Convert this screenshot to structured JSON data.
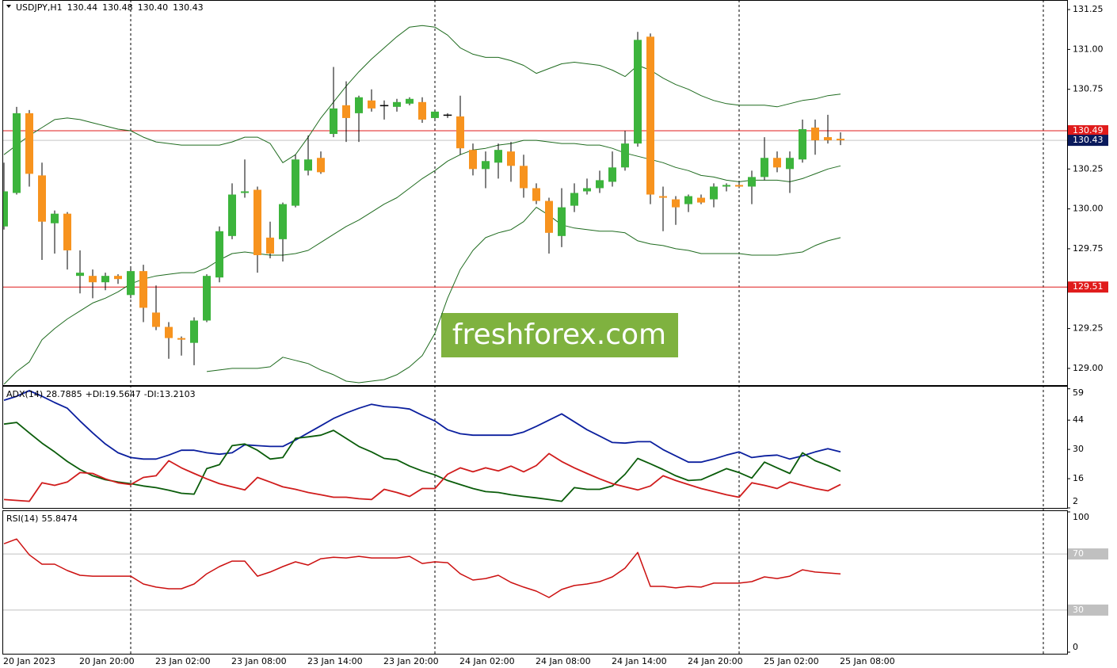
{
  "chart_data": [
    {
      "type": "candlestick",
      "title": "USDJPY,H1",
      "title_values": [
        "130.44",
        "130.48",
        "130.40",
        "130.43"
      ],
      "watermark": "freshforex.com",
      "categories": [
        "20 Jan 2023",
        null,
        null,
        null,
        null,
        null,
        "20 Jan 20:00",
        null,
        null,
        null,
        null,
        null,
        "23 Jan 02:00",
        null,
        null,
        null,
        null,
        null,
        "23 Jan 08:00",
        null,
        null,
        null,
        null,
        null,
        "23 Jan 14:00",
        null,
        null,
        null,
        null,
        null,
        "23 Jan 20:00",
        null,
        null,
        null,
        null,
        null,
        "24 Jan 02:00",
        null,
        null,
        null,
        null,
        null,
        "24 Jan 08:00",
        null,
        null,
        null,
        null,
        null,
        "24 Jan 14:00",
        null,
        null,
        null,
        null,
        null,
        "24 Jan 20:00",
        null,
        null,
        null,
        null,
        null,
        "25 Jan 02:00",
        null,
        null,
        null,
        null,
        null,
        "25 Jan 08:00"
      ],
      "open": [
        129.89,
        130.1,
        130.6,
        130.21,
        129.91,
        129.97,
        129.58,
        129.58,
        129.54,
        129.58,
        129.46,
        129.61,
        129.35,
        129.26,
        129.19,
        129.16,
        129.3,
        129.57,
        129.83,
        130.1,
        130.12,
        129.82,
        129.81,
        130.02,
        130.24,
        130.32,
        130.47,
        130.65,
        130.6,
        130.68,
        130.65,
        130.64,
        130.66,
        130.67,
        130.57,
        130.59,
        130.58,
        130.37,
        130.25,
        130.29,
        130.36,
        130.27,
        130.13,
        130.05,
        129.83,
        130.02,
        130.11,
        130.13,
        130.17,
        130.26,
        130.41,
        131.08,
        130.08,
        130.06,
        130.03,
        130.07,
        130.06,
        130.14,
        130.15,
        130.14,
        130.2,
        130.32,
        130.25,
        130.31,
        130.51,
        130.45,
        130.44
      ],
      "high": [
        130.29,
        130.64,
        130.62,
        130.29,
        129.99,
        129.98,
        129.74,
        129.62,
        129.6,
        129.59,
        129.64,
        129.65,
        129.52,
        129.29,
        129.2,
        129.32,
        129.59,
        129.89,
        130.16,
        130.31,
        130.14,
        129.92,
        130.04,
        130.34,
        130.46,
        130.36,
        130.89,
        130.8,
        130.71,
        130.75,
        130.68,
        130.69,
        130.7,
        130.7,
        130.61,
        130.6,
        130.71,
        130.41,
        130.36,
        130.41,
        130.42,
        130.34,
        130.16,
        130.07,
        130.13,
        130.16,
        130.19,
        130.24,
        130.36,
        130.49,
        131.11,
        131.1,
        130.14,
        130.08,
        130.09,
        130.09,
        130.16,
        130.16,
        130.17,
        130.24,
        130.45,
        130.36,
        130.36,
        130.56,
        130.56,
        130.59,
        130.48
      ],
      "low": [
        129.87,
        130.09,
        130.14,
        129.68,
        129.72,
        129.62,
        129.47,
        129.44,
        129.49,
        129.53,
        129.44,
        129.29,
        129.24,
        129.06,
        129.08,
        129.02,
        129.29,
        129.54,
        129.81,
        130.07,
        129.6,
        129.69,
        129.67,
        130.01,
        130.21,
        130.22,
        130.45,
        130.42,
        130.42,
        130.61,
        130.56,
        130.61,
        130.65,
        130.54,
        130.56,
        130.57,
        130.34,
        130.21,
        130.13,
        130.19,
        130.17,
        130.07,
        130.03,
        129.72,
        129.76,
        129.98,
        130.09,
        130.1,
        130.14,
        130.24,
        130.39,
        130.03,
        129.86,
        129.9,
        129.98,
        130.03,
        130.01,
        130.11,
        130.13,
        130.03,
        130.18,
        130.23,
        130.1,
        130.29,
        130.34,
        130.41,
        130.4
      ],
      "close": [
        130.11,
        130.6,
        130.22,
        129.92,
        129.97,
        129.74,
        129.6,
        129.54,
        129.58,
        129.56,
        129.61,
        129.38,
        129.26,
        129.19,
        129.18,
        129.3,
        129.58,
        129.86,
        130.09,
        130.11,
        129.71,
        129.72,
        130.03,
        130.31,
        130.31,
        130.23,
        130.63,
        130.57,
        130.7,
        130.63,
        130.65,
        130.67,
        130.69,
        130.56,
        130.61,
        130.59,
        130.38,
        130.25,
        130.3,
        130.37,
        130.27,
        130.13,
        130.05,
        129.85,
        130.01,
        130.1,
        130.13,
        130.18,
        130.26,
        130.41,
        131.06,
        130.09,
        130.07,
        130.01,
        130.08,
        130.04,
        130.14,
        130.15,
        130.14,
        130.2,
        130.32,
        130.26,
        130.32,
        130.5,
        130.43,
        130.43,
        130.43
      ],
      "up_color": "#3cb43c",
      "down_color": "#f7931e",
      "series": [
        {
          "color": "#1f6b1f",
          "values": [
            130.34,
            130.4,
            130.46,
            130.51,
            130.56,
            130.57,
            130.56,
            130.54,
            130.52,
            130.5,
            130.49,
            130.45,
            130.42,
            130.41,
            130.4,
            130.4,
            130.4,
            130.4,
            130.42,
            130.45,
            130.45,
            130.41,
            130.29,
            130.34,
            130.45,
            130.57,
            130.67,
            130.77,
            130.86,
            130.94,
            131.01,
            131.08,
            131.14,
            131.15,
            131.14,
            131.09,
            131.01,
            130.97,
            130.95,
            130.95,
            130.93,
            130.9,
            130.85,
            130.88,
            130.91,
            130.92,
            130.91,
            130.9,
            130.87,
            130.83,
            130.9,
            130.87,
            130.82,
            130.78,
            130.75,
            130.71,
            130.68,
            130.66,
            130.65,
            130.65,
            130.65,
            130.64,
            130.66,
            130.68,
            130.69,
            130.71,
            130.72
          ]
        },
        {
          "color": "#1f6b1f",
          "values": [
            128.9,
            128.98,
            129.04,
            129.18,
            129.25,
            129.31,
            129.36,
            129.41,
            129.44,
            129.48,
            129.53,
            129.56,
            129.58,
            129.59,
            129.6,
            129.6,
            129.63,
            129.68,
            129.72,
            129.73,
            129.72,
            129.71,
            129.71,
            129.72,
            129.74,
            129.79,
            129.84,
            129.89,
            129.93,
            129.98,
            130.03,
            130.07,
            130.13,
            130.19,
            130.24,
            130.3,
            130.34,
            130.37,
            130.38,
            130.4,
            130.41,
            130.43,
            130.43,
            130.42,
            130.41,
            130.41,
            130.4,
            130.4,
            130.38,
            130.35,
            130.33,
            130.31,
            130.29,
            130.26,
            130.24,
            130.21,
            130.2,
            130.18,
            130.17,
            130.18,
            130.18,
            130.18,
            130.17,
            130.19,
            130.22,
            130.25,
            130.27
          ]
        },
        {
          "color": "#1f6b1f",
          "values": [
            null,
            null,
            null,
            null,
            null,
            null,
            null,
            null,
            null,
            null,
            null,
            null,
            null,
            null,
            null,
            null,
            128.98,
            128.99,
            129.0,
            129.0,
            129.0,
            129.01,
            129.07,
            129.05,
            129.03,
            128.99,
            128.96,
            128.92,
            128.91,
            128.92,
            128.93,
            128.96,
            129.01,
            129.08,
            129.22,
            129.44,
            129.62,
            129.74,
            129.82,
            129.85,
            129.87,
            129.92,
            130.01,
            129.96,
            129.9,
            129.88,
            129.87,
            129.86,
            129.86,
            129.85,
            129.8,
            129.78,
            129.77,
            129.75,
            129.74,
            129.72,
            129.72,
            129.72,
            129.72,
            129.71,
            129.71,
            129.71,
            129.72,
            129.73,
            129.77,
            129.8,
            129.82
          ]
        }
      ],
      "levels": [
        {
          "value": 130.49,
          "color": "#e01b1b"
        },
        {
          "value": 129.51,
          "color": "#e01b1b"
        },
        {
          "value": 130.43,
          "color": "#c8c8c8",
          "label_color": "#0a1a5c"
        }
      ],
      "ylim": [
        128.9,
        131.31
      ],
      "yticks": [
        129.25,
        {
          "value": 129,
          "label": "129.00"
        },
        129.75,
        {
          "value": 130,
          "label": "130.00"
        },
        130.25,
        130.75,
        {
          "value": 131,
          "label": "131.00"
        },
        131.25
      ]
    },
    {
      "type": "line",
      "series": [
        {
          "name": "ADX(14)",
          "color": "#0b1f9e",
          "values": [
            53.5,
            55.4,
            58.1,
            55.4,
            52.4,
            49.7,
            43.6,
            37.9,
            32.6,
            28.4,
            26.1,
            25.4,
            25.4,
            27.3,
            29.6,
            29.6,
            28.4,
            27.7,
            28.4,
            32.2,
            31.8,
            31.4,
            31.4,
            34.5,
            37.9,
            41.3,
            44.8,
            47.4,
            49.7,
            51.6,
            50.5,
            50.1,
            49.3,
            46.3,
            43.6,
            39.4,
            37.5,
            36.8,
            36.8,
            36.8,
            36.8,
            38.3,
            41.0,
            44.0,
            47.0,
            43.2,
            39.4,
            36.4,
            33.3,
            33.0,
            33.7,
            33.7,
            29.9,
            26.9,
            23.9,
            23.9,
            25.4,
            27.3,
            28.8,
            26.1,
            26.9,
            27.3,
            25.4,
            26.9,
            28.8,
            30.3,
            28.7885
          ]
        },
        {
          "name": "+DI:",
          "color": "#0a5c0a",
          "values": [
            42.1,
            42.9,
            37.9,
            33.0,
            28.8,
            24.2,
            20.4,
            17.4,
            15.5,
            14.4,
            13.6,
            12.5,
            11.7,
            10.5,
            9.0,
            8.6,
            20.8,
            22.7,
            31.8,
            32.6,
            29.6,
            25.4,
            26.1,
            35.3,
            36.0,
            36.8,
            39.1,
            35.3,
            31.4,
            28.8,
            25.7,
            25.0,
            22.0,
            19.7,
            17.8,
            15.1,
            13.2,
            11.3,
            9.8,
            9.4,
            8.3,
            7.5,
            6.8,
            6.0,
            5.2,
            11.7,
            10.9,
            10.9,
            12.5,
            18.1,
            25.7,
            23.1,
            20.4,
            17.4,
            15.1,
            15.5,
            18.1,
            20.8,
            18.9,
            16.3,
            23.9,
            21.2,
            18.5,
            28.4,
            24.6,
            22.3,
            19.5647
          ]
        },
        {
          "name": "-DI:",
          "color": "#d01c1c",
          "values": [
            6.0,
            5.6,
            5.2,
            14.0,
            12.8,
            14.4,
            18.9,
            18.5,
            15.9,
            14.0,
            13.2,
            16.6,
            17.4,
            24.6,
            21.2,
            18.5,
            15.9,
            13.6,
            12.1,
            10.6,
            16.6,
            14.4,
            12.1,
            10.9,
            9.4,
            8.3,
            7.1,
            7.1,
            6.4,
            6.0,
            10.9,
            9.4,
            7.5,
            11.3,
            11.3,
            18.1,
            21.2,
            19.3,
            21.2,
            19.7,
            22.0,
            19.3,
            22.3,
            28.0,
            24.2,
            21.2,
            18.5,
            15.9,
            13.6,
            12.1,
            10.6,
            12.5,
            17.4,
            15.1,
            13.2,
            11.3,
            9.8,
            8.3,
            7.1,
            14.0,
            12.8,
            11.3,
            14.4,
            12.8,
            11.3,
            10.2,
            13.2103
          ]
        }
      ],
      "ylim": [
        2,
        60
      ],
      "yticks": [
        59,
        44,
        30,
        16,
        2
      ]
    },
    {
      "type": "line",
      "series": [
        {
          "name": "RSI(14)",
          "color": "#cc1010",
          "values": [
            77.3,
            80.7,
            69.4,
            62.7,
            62.7,
            58.2,
            54.8,
            54.2,
            54.2,
            54.2,
            54.2,
            48.6,
            46.4,
            45.2,
            45.2,
            48.6,
            55.9,
            61.0,
            64.9,
            64.9,
            54.2,
            57.1,
            61.0,
            64.4,
            62.1,
            66.6,
            67.7,
            67.2,
            68.3,
            67.2,
            67.2,
            67.2,
            68.3,
            63.2,
            64.4,
            63.8,
            55.9,
            51.4,
            52.5,
            54.8,
            49.7,
            46.4,
            43.5,
            39.0,
            44.7,
            47.5,
            48.6,
            50.3,
            53.7,
            59.9,
            71.1,
            46.9,
            46.9,
            45.8,
            46.9,
            46.4,
            49.2,
            49.2,
            49.2,
            50.3,
            53.7,
            52.5,
            54.2,
            58.7,
            57.1,
            56.5,
            55.8474
          ]
        }
      ],
      "levels": [
        {
          "value": 70,
          "color": "#c0c0c0"
        },
        {
          "value": 30,
          "color": "#c0c0c0"
        }
      ],
      "ylim": [
        0,
        100
      ],
      "yticks": [
        100,
        0
      ]
    }
  ]
}
